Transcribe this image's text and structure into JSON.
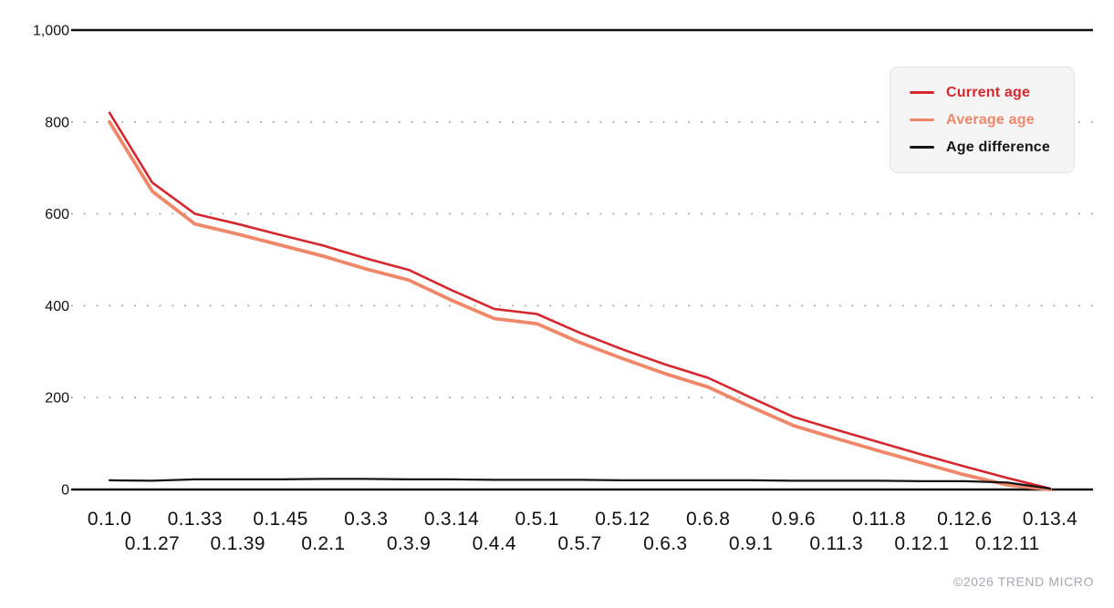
{
  "chart_data": {
    "type": "line",
    "title": "",
    "xlabel": "",
    "ylabel": "",
    "ylim": [
      0,
      1000
    ],
    "yticks": [
      0,
      200,
      400,
      600,
      800,
      1000
    ],
    "ytick_labels": [
      "0",
      "200",
      "400",
      "600",
      "800",
      "1,000"
    ],
    "grid": "dotted-horizontal, solid top (1000) and bottom (0) rules",
    "legend_position": "top-right",
    "categories": [
      "0.1.0",
      "0.1.27",
      "0.1.33",
      "0.1.39",
      "0.1.45",
      "0.2.1",
      "0.3.3",
      "0.3.9",
      "0.3.14",
      "0.4.4",
      "0.5.1",
      "0.5.7",
      "0.5.12",
      "0.6.3",
      "0.6.8",
      "0.9.1",
      "0.9.6",
      "0.11.3",
      "0.11.8",
      "0.12.1",
      "0.12.6",
      "0.12.11",
      "0.13.4"
    ],
    "series": [
      {
        "name": "Current age",
        "color": "#d7272e",
        "line_width": 2.6,
        "values": [
          820,
          668,
          600,
          578,
          554,
          531,
          503,
          478,
          434,
          393,
          382,
          341,
          305,
          272,
          243,
          200,
          158,
          130,
          103,
          76,
          50,
          25,
          2
        ]
      },
      {
        "name": "Average age",
        "color": "#ef8768",
        "line_width": 3.8,
        "values": [
          800,
          649,
          578,
          556,
          532,
          508,
          480,
          456,
          412,
          372,
          361,
          320,
          285,
          252,
          223,
          180,
          139,
          111,
          84,
          58,
          32,
          10,
          0
        ]
      },
      {
        "name": "Age difference",
        "color": "#141414",
        "line_width": 2.2,
        "values": [
          20,
          19,
          22,
          22,
          22,
          23,
          23,
          22,
          22,
          21,
          21,
          21,
          20,
          20,
          20,
          20,
          19,
          19,
          19,
          18,
          18,
          15,
          2
        ]
      }
    ]
  },
  "colors": {
    "axis_line": "#111111",
    "gridline_dots": "#9d9d9d",
    "tick_label": "#111111",
    "legend_background": "#f5f5f5",
    "legend_border": "#e3e3e3",
    "copyright_text": "#a4a9ad"
  },
  "footer": {
    "copyright": "©2026 TREND MICRO"
  }
}
